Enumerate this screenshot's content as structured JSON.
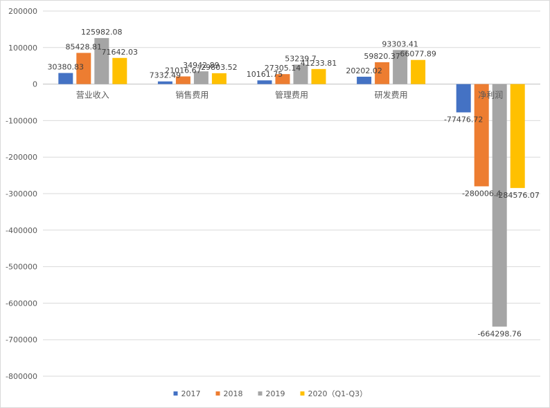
{
  "chart_data": {
    "type": "bar",
    "categories": [
      "营业收入",
      "销售费用",
      "管理费用",
      "研发费用",
      "净利润"
    ],
    "series": [
      {
        "name": "2017",
        "color": "#4472C4",
        "values": [
          30380.83,
          7332.49,
          10161.75,
          20202.02,
          -77476.72
        ]
      },
      {
        "name": "2018",
        "color": "#ED7D31",
        "values": [
          85428.81,
          21016.67,
          27305.14,
          59820.37,
          -280006.4
        ]
      },
      {
        "name": "2019",
        "color": "#A5A5A5",
        "values": [
          125982.08,
          34942.89,
          53239.7,
          93303.41,
          -664298.76
        ]
      },
      {
        "name": "2020（Q1-Q3）",
        "color": "#FFC000",
        "values": [
          71642.03,
          29803.52,
          41233.81,
          66077.89,
          -284576.07
        ]
      }
    ],
    "data_labels": [
      [
        "30380.83",
        "7332.49",
        "10161.75",
        "20202.02",
        "-77476.72"
      ],
      [
        "85428.81",
        "21016.67",
        "27305.14",
        "59820.37",
        "-280006.4"
      ],
      [
        "125982.08",
        "34942.89",
        "53239.7",
        "93303.41",
        "-664298.76"
      ],
      [
        "71642.03",
        "29803.52",
        "41233.81",
        "66077.89",
        "-284576.07"
      ]
    ],
    "ylim": [
      -800000,
      200000
    ],
    "yticks": [
      200000,
      100000,
      0,
      -100000,
      -200000,
      -300000,
      -400000,
      -500000,
      -600000,
      -700000,
      -800000
    ],
    "ytick_labels": [
      "200000",
      "100000",
      "0",
      "-100000",
      "-200000",
      "-300000",
      "-400000",
      "-500000",
      "-600000",
      "-700000",
      "-800000"
    ],
    "title": "",
    "xlabel": "",
    "ylabel": "",
    "grid": true,
    "legend_position": "bottom"
  }
}
